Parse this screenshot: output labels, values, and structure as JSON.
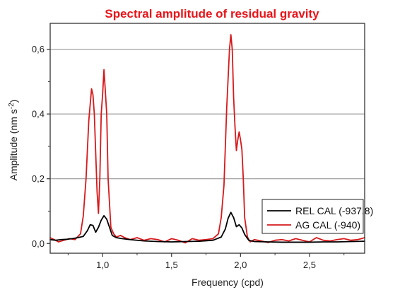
{
  "chart_data": {
    "type": "line",
    "title": "Spectral amplitude of residual gravity",
    "xlabel": "Frequency (cpd)",
    "ylabel": "Amplitude (nm s",
    "ylabel_sup": "-2",
    "ylabel_close": ")",
    "xlim": [
      0.62,
      2.9
    ],
    "ylim": [
      -0.03,
      0.68
    ],
    "xticks": [
      1.0,
      1.5,
      2.0,
      2.5
    ],
    "xtick_labels": [
      "1,0",
      "1,5",
      "2,0",
      "2,5"
    ],
    "yticks": [
      0.0,
      0.2,
      0.4,
      0.6
    ],
    "ytick_labels": [
      "0,0",
      "0,2",
      "0,4",
      "0,6"
    ],
    "grid": "horizontal",
    "legend_placement": "bottom-right",
    "series": [
      {
        "name": "REL CAL (-937.8)",
        "color": "#000000",
        "x": [
          0.62,
          0.66,
          0.7,
          0.74,
          0.78,
          0.82,
          0.86,
          0.89,
          0.91,
          0.93,
          0.95,
          0.97,
          0.99,
          1.01,
          1.03,
          1.05,
          1.07,
          1.1,
          1.14,
          1.2,
          1.3,
          1.4,
          1.5,
          1.6,
          1.7,
          1.8,
          1.86,
          1.89,
          1.91,
          1.93,
          1.95,
          1.97,
          1.99,
          2.01,
          2.03,
          2.06,
          2.1,
          2.2,
          2.3,
          2.4,
          2.5,
          2.6,
          2.7,
          2.8,
          2.9
        ],
        "y": [
          0.012,
          0.01,
          0.012,
          0.013,
          0.015,
          0.018,
          0.022,
          0.04,
          0.058,
          0.056,
          0.035,
          0.05,
          0.072,
          0.086,
          0.075,
          0.05,
          0.025,
          0.018,
          0.015,
          0.012,
          0.008,
          0.006,
          0.005,
          0.006,
          0.007,
          0.01,
          0.02,
          0.045,
          0.078,
          0.096,
          0.08,
          0.052,
          0.058,
          0.048,
          0.028,
          0.01,
          0.006,
          0.005,
          0.004,
          0.004,
          0.004,
          0.005,
          0.005,
          0.006,
          0.007
        ]
      },
      {
        "name": "AG CAL (-940)",
        "color": "#d7191c",
        "x": [
          0.62,
          0.65,
          0.68,
          0.72,
          0.76,
          0.8,
          0.84,
          0.86,
          0.88,
          0.9,
          0.92,
          0.93,
          0.94,
          0.96,
          0.97,
          0.98,
          0.99,
          1.0,
          1.01,
          1.02,
          1.03,
          1.04,
          1.06,
          1.08,
          1.1,
          1.13,
          1.16,
          1.2,
          1.25,
          1.3,
          1.35,
          1.4,
          1.45,
          1.5,
          1.55,
          1.6,
          1.65,
          1.7,
          1.75,
          1.8,
          1.84,
          1.86,
          1.88,
          1.9,
          1.92,
          1.93,
          1.94,
          1.95,
          1.96,
          1.97,
          1.98,
          1.99,
          2.0,
          2.01,
          2.02,
          2.03,
          2.05,
          2.07,
          2.1,
          2.15,
          2.2,
          2.25,
          2.3,
          2.35,
          2.4,
          2.45,
          2.5,
          2.55,
          2.6,
          2.65,
          2.7,
          2.75,
          2.8,
          2.85,
          2.9
        ],
        "y": [
          0.018,
          0.012,
          0.005,
          0.01,
          0.015,
          0.012,
          0.03,
          0.085,
          0.2,
          0.38,
          0.478,
          0.46,
          0.4,
          0.16,
          0.093,
          0.2,
          0.4,
          0.46,
          0.537,
          0.47,
          0.4,
          0.2,
          0.05,
          0.03,
          0.02,
          0.025,
          0.018,
          0.012,
          0.018,
          0.01,
          0.015,
          0.012,
          0.005,
          0.015,
          0.01,
          0.002,
          0.015,
          0.01,
          0.012,
          0.015,
          0.03,
          0.08,
          0.18,
          0.42,
          0.6,
          0.645,
          0.6,
          0.45,
          0.36,
          0.287,
          0.32,
          0.345,
          0.32,
          0.29,
          0.2,
          0.08,
          0.02,
          0.005,
          0.012,
          0.008,
          0.003,
          0.01,
          0.012,
          0.008,
          0.015,
          0.01,
          0.005,
          0.018,
          0.01,
          0.008,
          0.012,
          0.015,
          0.01,
          0.012,
          0.018
        ]
      }
    ]
  }
}
